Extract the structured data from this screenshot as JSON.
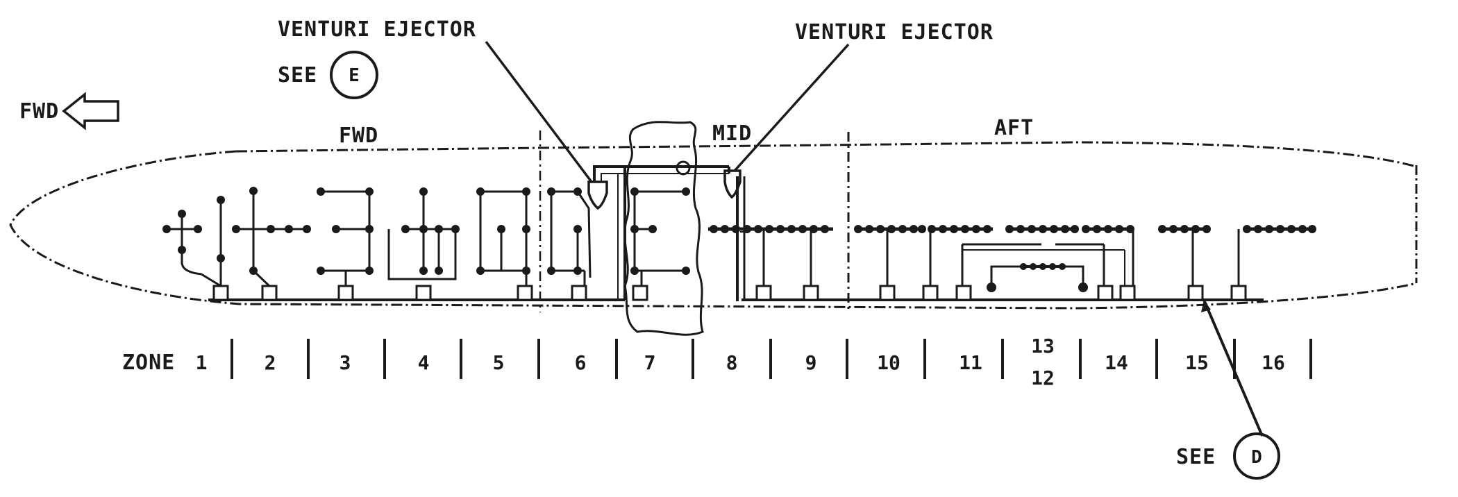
{
  "labels": {
    "ejector_left": "VENTURI EJECTOR",
    "ejector_right": "VENTURI EJECTOR",
    "see_e_text": "SEE",
    "see_e_letter": "E",
    "see_d_text": "SEE",
    "see_d_letter": "D",
    "fwd_arrow": "FWD",
    "section_fwd": "FWD",
    "section_mid": "MID",
    "section_aft": "AFT"
  },
  "zones": {
    "prefix": "ZONE",
    "items": [
      "1",
      "2",
      "3",
      "4",
      "5",
      "6",
      "7",
      "8",
      "9",
      "10",
      "11",
      "13",
      "14",
      "15",
      "16"
    ],
    "stacked_lower": "12"
  }
}
